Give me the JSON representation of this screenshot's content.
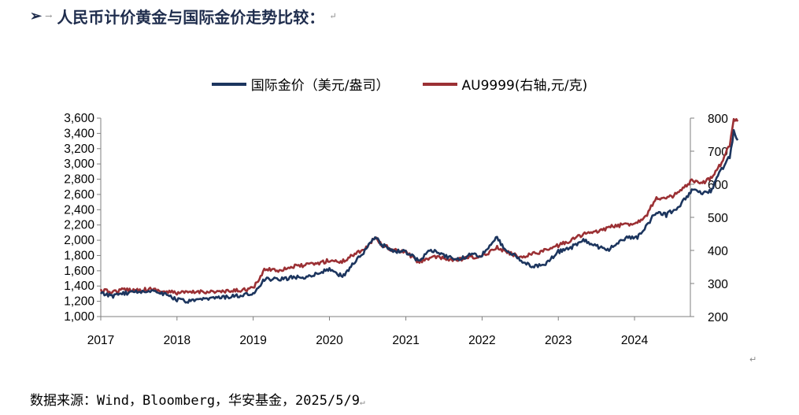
{
  "heading": {
    "bullet": "➢",
    "arrow": "→",
    "text": "人民币计价黄金与国际金价走势比较：",
    "mark": "↵"
  },
  "source": {
    "text": "数据来源：Wind，Bloomberg，华安基金，2025/5/9",
    "mark": "↵"
  },
  "stray_mark": "↵",
  "colors": {
    "series1": "#1c355e",
    "series2": "#9b3034",
    "axis": "#7f7f7f"
  },
  "chart_data": {
    "type": "line",
    "x_axis": {
      "type": "date",
      "min": "2017-01-01",
      "max": "2024-12-31",
      "ticks": [
        "2017",
        "2018",
        "2019",
        "2020",
        "2021",
        "2022",
        "2023",
        "2024"
      ]
    },
    "y_left": {
      "min": 1000,
      "max": 3600,
      "step": 200,
      "ticks": [
        "1,000",
        "1,200",
        "1,400",
        "1,600",
        "1,800",
        "2,000",
        "2,200",
        "2,400",
        "2,600",
        "2,800",
        "3,000",
        "3,200",
        "3,400",
        "3,600"
      ]
    },
    "y_right": {
      "min": 200,
      "max": 800,
      "step": 100,
      "ticks": [
        "200",
        "300",
        "400",
        "500",
        "600",
        "700",
        "800"
      ]
    },
    "legend": {
      "placement": "top-center"
    },
    "grid": false,
    "series": [
      {
        "name": "国际金价（美元/盎司）",
        "axis": "left",
        "points": [
          [
            "2017-01-01",
            1300
          ],
          [
            "2017-03-01",
            1270
          ],
          [
            "2017-05-01",
            1310
          ],
          [
            "2017-07-01",
            1330
          ],
          [
            "2017-09-01",
            1340
          ],
          [
            "2017-11-01",
            1300
          ],
          [
            "2018-01-01",
            1220
          ],
          [
            "2018-03-01",
            1195
          ],
          [
            "2018-05-01",
            1220
          ],
          [
            "2018-07-01",
            1240
          ],
          [
            "2018-09-01",
            1260
          ],
          [
            "2018-11-01",
            1270
          ],
          [
            "2019-01-01",
            1300
          ],
          [
            "2019-03-01",
            1500
          ],
          [
            "2019-05-01",
            1480
          ],
          [
            "2019-07-01",
            1510
          ],
          [
            "2019-09-01",
            1520
          ],
          [
            "2019-11-01",
            1560
          ],
          [
            "2020-01-01",
            1620
          ],
          [
            "2020-02-15",
            1540
          ],
          [
            "2020-03-15",
            1550
          ],
          [
            "2020-05-01",
            1720
          ],
          [
            "2020-07-01",
            1900
          ],
          [
            "2020-08-07",
            2060
          ],
          [
            "2020-09-01",
            1950
          ],
          [
            "2020-11-01",
            1860
          ],
          [
            "2021-01-01",
            1850
          ],
          [
            "2021-03-01",
            1730
          ],
          [
            "2021-05-01",
            1880
          ],
          [
            "2021-07-01",
            1800
          ],
          [
            "2021-09-01",
            1750
          ],
          [
            "2021-11-01",
            1800
          ],
          [
            "2022-01-01",
            1810
          ],
          [
            "2022-03-08",
            2040
          ],
          [
            "2022-05-01",
            1860
          ],
          [
            "2022-07-01",
            1750
          ],
          [
            "2022-09-01",
            1650
          ],
          [
            "2022-11-01",
            1700
          ],
          [
            "2023-01-01",
            1850
          ],
          [
            "2023-03-01",
            1900
          ],
          [
            "2023-05-01",
            2000
          ],
          [
            "2023-07-01",
            1920
          ],
          [
            "2023-09-01",
            1880
          ],
          [
            "2023-10-15",
            1980
          ],
          [
            "2023-12-01",
            2050
          ],
          [
            "2024-01-15",
            2030
          ],
          [
            "2024-03-01",
            2200
          ],
          [
            "2024-04-15",
            2380
          ],
          [
            "2024-06-01",
            2330
          ],
          [
            "2024-08-01",
            2450
          ],
          [
            "2024-10-01",
            2650
          ],
          [
            "2024-11-15",
            2620
          ],
          [
            "2024-12-31",
            2640
          ],
          [
            "2025-02-15",
            2900
          ],
          [
            "2025-04-01",
            3100
          ],
          [
            "2025-04-20",
            3420
          ],
          [
            "2025-05-09",
            3310
          ]
        ]
      },
      {
        "name": "AU9999(右轴,元/克)",
        "axis": "right",
        "points": [
          [
            "2017-01-01",
            278
          ],
          [
            "2017-03-01",
            275
          ],
          [
            "2017-05-01",
            282
          ],
          [
            "2017-07-01",
            280
          ],
          [
            "2017-09-01",
            283
          ],
          [
            "2017-11-01",
            275
          ],
          [
            "2018-01-01",
            272
          ],
          [
            "2018-03-01",
            272
          ],
          [
            "2018-05-01",
            276
          ],
          [
            "2018-07-01",
            275
          ],
          [
            "2018-09-01",
            275
          ],
          [
            "2018-11-01",
            280
          ],
          [
            "2019-01-01",
            285
          ],
          [
            "2019-03-01",
            345
          ],
          [
            "2019-05-01",
            340
          ],
          [
            "2019-07-01",
            350
          ],
          [
            "2019-09-01",
            355
          ],
          [
            "2019-11-01",
            360
          ],
          [
            "2020-01-01",
            370
          ],
          [
            "2020-03-01",
            365
          ],
          [
            "2020-05-01",
            390
          ],
          [
            "2020-07-01",
            410
          ],
          [
            "2020-08-07",
            440
          ],
          [
            "2020-09-01",
            420
          ],
          [
            "2020-11-01",
            400
          ],
          [
            "2021-01-01",
            395
          ],
          [
            "2021-03-01",
            365
          ],
          [
            "2021-05-01",
            380
          ],
          [
            "2021-07-01",
            375
          ],
          [
            "2021-09-01",
            370
          ],
          [
            "2021-11-01",
            378
          ],
          [
            "2022-01-01",
            380
          ],
          [
            "2022-03-08",
            410
          ],
          [
            "2022-05-01",
            395
          ],
          [
            "2022-07-01",
            380
          ],
          [
            "2022-09-01",
            390
          ],
          [
            "2022-11-01",
            400
          ],
          [
            "2023-01-01",
            415
          ],
          [
            "2023-03-01",
            430
          ],
          [
            "2023-05-01",
            450
          ],
          [
            "2023-07-01",
            455
          ],
          [
            "2023-09-01",
            470
          ],
          [
            "2023-10-15",
            475
          ],
          [
            "2023-12-01",
            480
          ],
          [
            "2024-01-15",
            485
          ],
          [
            "2024-03-01",
            510
          ],
          [
            "2024-04-15",
            560
          ],
          [
            "2024-06-01",
            555
          ],
          [
            "2024-08-01",
            575
          ],
          [
            "2024-10-01",
            610
          ],
          [
            "2024-11-15",
            600
          ],
          [
            "2024-12-31",
            620
          ],
          [
            "2025-02-15",
            660
          ],
          [
            "2025-04-01",
            720
          ],
          [
            "2025-04-20",
            795
          ],
          [
            "2025-05-09",
            790
          ]
        ]
      }
    ]
  }
}
